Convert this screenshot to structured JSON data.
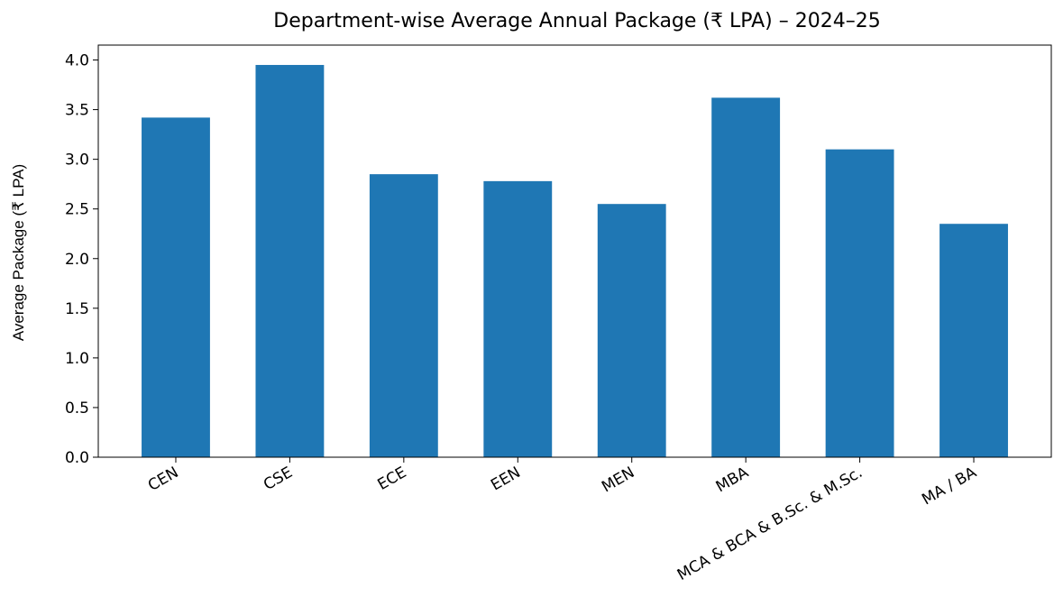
{
  "chart_data": {
    "type": "bar",
    "title": "Department-wise Average Annual Package (₹ LPA) – 2024–25",
    "y_label": "Average Package (₹ LPA)",
    "categories": [
      "CEN",
      "CSE",
      "ECE",
      "EEN",
      "MEN",
      "MBA",
      "MCA & BCA & B.Sc. & M.Sc.",
      "MA / BA"
    ],
    "values": [
      3.42,
      3.95,
      2.85,
      2.78,
      2.55,
      3.62,
      3.1,
      2.35
    ],
    "color": "#1f77b4",
    "ylim": [
      0,
      4.15
    ],
    "yticks": [
      {
        "value": 0,
        "label": "0.0"
      },
      0.5,
      {
        "value": 1,
        "label": "1.0"
      },
      1.5,
      {
        "value": 2,
        "label": "2.0"
      },
      2.5,
      {
        "value": 3,
        "label": "3.0"
      },
      3.5,
      {
        "value": 4,
        "label": "4.0"
      }
    ],
    "grid": false
  }
}
